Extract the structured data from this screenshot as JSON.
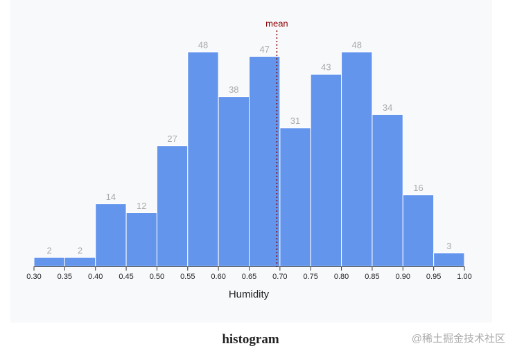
{
  "chart_data": {
    "type": "histogram",
    "x_label": "Humidity",
    "bins": [
      {
        "value": 0.3,
        "label": "0.30"
      },
      {
        "value": 0.35,
        "label": "0.35"
      },
      {
        "value": 0.4,
        "label": "0.40"
      },
      {
        "value": 0.45,
        "label": "0.45"
      },
      {
        "value": 0.5,
        "label": "0.50"
      },
      {
        "value": 0.55,
        "label": "0.55"
      },
      {
        "value": 0.6,
        "label": "0.60"
      },
      {
        "value": 0.65,
        "label": "0.65"
      },
      {
        "value": 0.7,
        "label": "0.70"
      },
      {
        "value": 0.75,
        "label": "0.75"
      },
      {
        "value": 0.8,
        "label": "0.80"
      },
      {
        "value": 0.85,
        "label": "0.85"
      },
      {
        "value": 0.9,
        "label": "0.90"
      },
      {
        "value": 0.95,
        "label": "0.95"
      },
      {
        "value": 1.0,
        "label": "1.00"
      }
    ],
    "values": [
      2,
      2,
      14,
      12,
      27,
      48,
      38,
      47,
      31,
      43,
      48,
      34,
      16,
      3
    ],
    "color": "#6495ed",
    "xlim": [
      0.3,
      1.0
    ],
    "annotations": [
      {
        "text": "mean",
        "x": 0.695,
        "color": "#8b0000"
      }
    ]
  },
  "caption": "histogram",
  "watermark": "@稀土掘金技术社区"
}
